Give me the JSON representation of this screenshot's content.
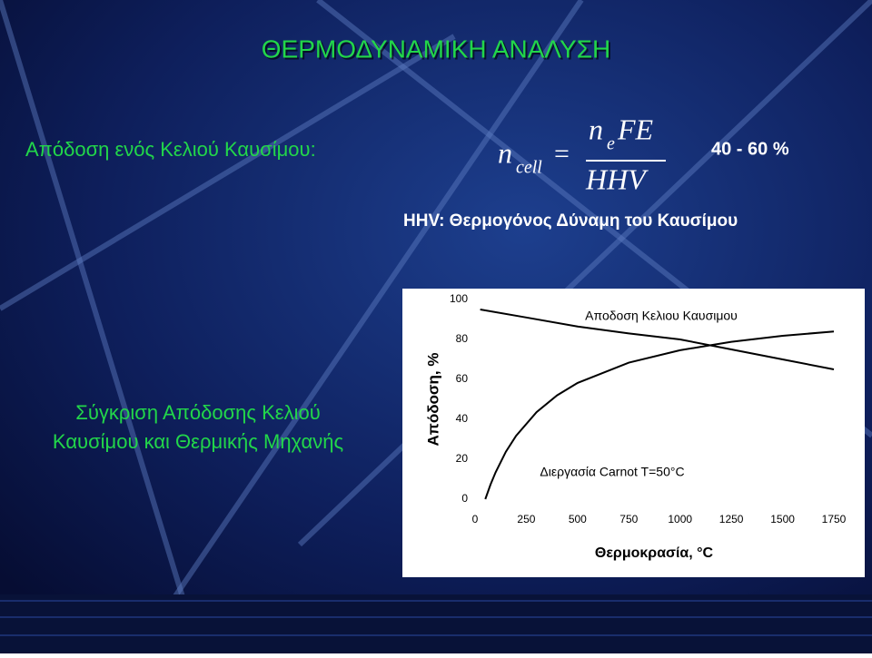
{
  "slide": {
    "title": "ΘΕΡΜΟΔΥΝΑΜΙΚΗ ΑΝΑΛΥΣΗ",
    "efficiency_label": "Απόδοση ενός Κελιού Καυσίμου:",
    "formula": {
      "n_left": "n",
      "cell": "cell",
      "equals": "=",
      "n_top": "n",
      "e": "e",
      "fe": "FE",
      "hhv": "HHV"
    },
    "range": "40 - 60 %",
    "hhv_note": "HHV: Θερμογόνος Δύναμη του Καυσίμου",
    "comparison_line1": "Σύγκριση  Απόδοσης Κελιού",
    "comparison_line2": "Καυσίμου και Θερμικής Μηχανής"
  },
  "chart_data": {
    "type": "line",
    "x_label": "Θερμοκρασία, °C",
    "y_label": "Απόδοση, %",
    "xlim": [
      0,
      1750
    ],
    "xticks": [
      0,
      250,
      500,
      750,
      1000,
      1250,
      1500,
      1750
    ],
    "ylim": [
      0,
      100
    ],
    "yticks": [
      0,
      20,
      40,
      60,
      80,
      100
    ],
    "series": [
      {
        "name": "Αποδοση Κελιου Καυσιμου",
        "color": "#000000",
        "x": [
          25,
          250,
          500,
          750,
          1000,
          1250,
          1500,
          1750
        ],
        "values": [
          95,
          91,
          86.5,
          83,
          80,
          75,
          70,
          65
        ]
      },
      {
        "name": "Διεργασία Carnot T=50°C",
        "color": "#000000",
        "x": [
          50,
          75,
          100,
          150,
          200,
          300,
          400,
          500,
          750,
          1000,
          1250,
          1500,
          1750
        ],
        "values": [
          0,
          7.2,
          13.4,
          23.7,
          31.7,
          43.6,
          52.0,
          58.2,
          68.4,
          74.6,
          78.8,
          81.8,
          84.0
        ]
      }
    ]
  }
}
